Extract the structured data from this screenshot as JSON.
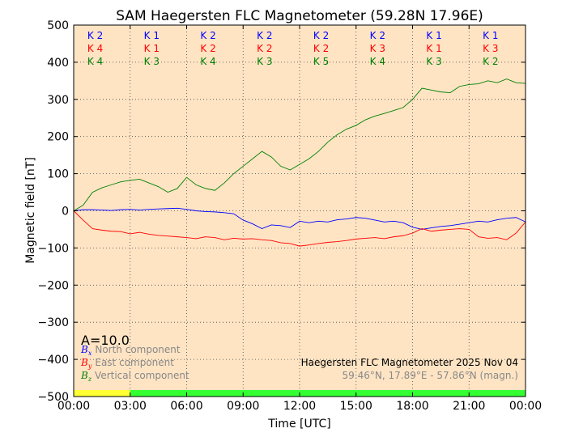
{
  "chart_data": {
    "type": "line",
    "title": "SAM Haegersten FLC Magnetometer (59.28N 17.96E)",
    "xlabel": "Time [UTC]",
    "ylabel": "Magnetic field [nT]",
    "xlim": [
      0,
      24
    ],
    "ylim": [
      -500,
      500
    ],
    "yticks": [
      500,
      400,
      300,
      200,
      100,
      0,
      -100,
      -200,
      -300,
      -400,
      -500
    ],
    "ytick_labels": [
      "500",
      "400",
      "300",
      "200",
      "100",
      "0",
      "−100",
      "−200",
      "−300",
      "−400",
      "−500"
    ],
    "xticks": [
      0,
      3,
      6,
      9,
      12,
      15,
      18,
      21,
      24
    ],
    "xtick_labels": [
      "00:00",
      "03:00",
      "06:00",
      "09:00",
      "12:00",
      "15:00",
      "18:00",
      "21:00",
      "00:00"
    ],
    "grid": true,
    "background": "#ffe4c4",
    "series": [
      {
        "name": "North component",
        "symbol": "x",
        "color": "#0000ff",
        "x": [
          0,
          0.5,
          1,
          1.5,
          2,
          2.5,
          3,
          3.5,
          4,
          4.5,
          5,
          5.5,
          6,
          6.5,
          7,
          7.5,
          8,
          8.5,
          9,
          9.5,
          10,
          10.5,
          11,
          11.5,
          12,
          12.5,
          13,
          13.5,
          14,
          14.5,
          15,
          15.5,
          16,
          16.5,
          17,
          17.5,
          18,
          18.5,
          19,
          19.5,
          20,
          20.5,
          21,
          21.5,
          22,
          22.5,
          23,
          23.5,
          24
        ],
        "values": [
          0,
          3,
          3,
          2,
          1,
          3,
          4,
          2,
          4,
          5,
          6,
          7,
          4,
          0,
          -2,
          -3,
          -5,
          -8,
          -25,
          -35,
          -48,
          -38,
          -40,
          -45,
          -28,
          -32,
          -28,
          -30,
          -24,
          -22,
          -18,
          -20,
          -25,
          -30,
          -28,
          -32,
          -44,
          -50,
          -46,
          -42,
          -40,
          -36,
          -32,
          -28,
          -30,
          -24,
          -20,
          -18,
          -30
        ]
      },
      {
        "name": "East component",
        "symbol": "y",
        "color": "#ff0000",
        "x": [
          0,
          0.5,
          1,
          1.5,
          2,
          2.5,
          3,
          3.5,
          4,
          4.5,
          5,
          5.5,
          6,
          6.5,
          7,
          7.5,
          8,
          8.5,
          9,
          9.5,
          10,
          10.5,
          11,
          11.5,
          12,
          12.5,
          13,
          13.5,
          14,
          14.5,
          15,
          15.5,
          16,
          16.5,
          17,
          17.5,
          18,
          18.5,
          19,
          19.5,
          20,
          20.5,
          21,
          21.5,
          22,
          22.5,
          23,
          23.5,
          24
        ],
        "values": [
          0,
          -25,
          -48,
          -52,
          -55,
          -56,
          -62,
          -58,
          -63,
          -66,
          -68,
          -70,
          -72,
          -75,
          -70,
          -72,
          -78,
          -74,
          -76,
          -75,
          -78,
          -80,
          -86,
          -88,
          -95,
          -92,
          -88,
          -85,
          -83,
          -80,
          -76,
          -74,
          -72,
          -75,
          -70,
          -67,
          -60,
          -48,
          -55,
          -52,
          -50,
          -48,
          -50,
          -70,
          -74,
          -72,
          -78,
          -60,
          -30
        ]
      },
      {
        "name": "Vertical component",
        "symbol": "z",
        "color": "#008000",
        "x": [
          0,
          0.5,
          1,
          1.5,
          2,
          2.5,
          3,
          3.5,
          4,
          4.5,
          5,
          5.5,
          6,
          6.5,
          7,
          7.5,
          8,
          8.5,
          9,
          9.5,
          10,
          10.5,
          11,
          11.5,
          12,
          12.5,
          13,
          13.5,
          14,
          14.5,
          15,
          15.5,
          16,
          16.5,
          17,
          17.5,
          18,
          18.5,
          19,
          19.5,
          20,
          20.5,
          21,
          21.5,
          22,
          22.5,
          23,
          23.5,
          24
        ],
        "values": [
          0,
          15,
          50,
          62,
          70,
          78,
          82,
          85,
          75,
          65,
          50,
          60,
          90,
          70,
          60,
          55,
          75,
          100,
          120,
          140,
          160,
          145,
          120,
          110,
          125,
          140,
          160,
          185,
          205,
          220,
          230,
          245,
          255,
          262,
          270,
          278,
          300,
          330,
          325,
          320,
          318,
          335,
          340,
          342,
          350,
          345,
          355,
          345,
          343
        ]
      }
    ],
    "k_index_labels": [
      {
        "x": [
          0.8,
          3.8,
          6.8,
          9.8,
          12.8,
          15.8,
          18.8,
          21.8
        ],
        "color": "#0000ff",
        "labels": [
          "K 2",
          "K 1",
          "K 2",
          "K 2",
          "K 2",
          "K 2",
          "K 1",
          "K 1"
        ]
      },
      {
        "x": [
          0.8,
          3.8,
          6.8,
          9.8,
          12.8,
          15.8,
          18.8,
          21.8
        ],
        "color": "#ff0000",
        "labels": [
          "K 4",
          "K 1",
          "K 2",
          "K 2",
          "K 2",
          "K 3",
          "K 1",
          "K 3"
        ]
      },
      {
        "x": [
          0.8,
          3.8,
          6.8,
          9.8,
          12.8,
          15.8,
          18.8,
          21.8
        ],
        "color": "#008000",
        "labels": [
          "K 4",
          "K 3",
          "K 4",
          "K 3",
          "K 5",
          "K 4",
          "K 3",
          "K 2"
        ]
      }
    ],
    "activity_bar": [
      {
        "from": 0,
        "to": 3,
        "color": "#ffff33"
      },
      {
        "from": 3,
        "to": 24,
        "color": "#33ff33"
      }
    ],
    "a_index": "A=10.0",
    "legend_location": "lower-left",
    "info_lines": [
      {
        "text": "Haegersten FLC Magnetometer 2025 Nov 04",
        "color": "#000000"
      },
      {
        "text": "59.46°N, 17.89°E - 57.86°N (magn.)",
        "color": "#888888"
      }
    ]
  }
}
